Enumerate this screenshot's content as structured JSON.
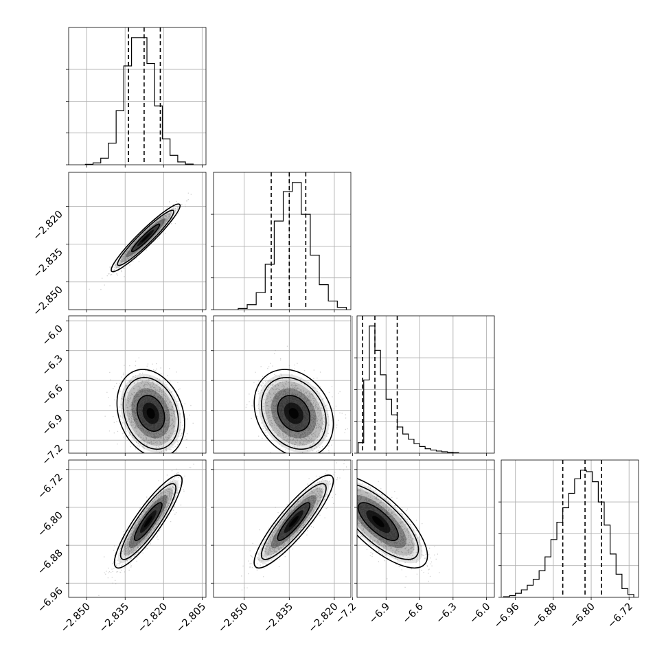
{
  "chart_data": {
    "type": "corner",
    "n_params": 4,
    "parameters": [
      {
        "xlim": [
          -2.857,
          -2.8035
        ],
        "xticks": [
          -2.85,
          -2.835,
          -2.82,
          -2.805
        ],
        "xticklabels": [
          "−2.850",
          "−2.835",
          "−2.820",
          "−2.805"
        ],
        "ylim": [
          -2.861,
          -2.8065
        ],
        "yticks": [
          -2.85,
          -2.835,
          -2.82
        ],
        "yticklabels": [
          "−2.850",
          "−2.835",
          "−2.820"
        ],
        "quantiles": [
          -2.8337,
          -2.8276,
          -2.8213
        ],
        "hist": {
          "edges": [
            -2.8505,
            -2.8475,
            -2.8445,
            -2.8415,
            -2.8385,
            -2.8355,
            -2.8325,
            -2.8295,
            -2.8265,
            -2.8235,
            -2.8205,
            -2.8175,
            -2.8145,
            -2.8115,
            -2.8085
          ],
          "counts": [
            2,
            8,
            28,
            92,
            230,
            420,
            540,
            540,
            430,
            250,
            110,
            40,
            12,
            3
          ]
        }
      },
      {
        "xlim": [
          -2.8602,
          -2.8145
        ],
        "xticks": [
          -2.85,
          -2.835,
          -2.82
        ],
        "xticklabels": [
          "−2.850",
          "−2.835",
          "−2.820"
        ],
        "ylim": [
          -7.33,
          -5.95
        ],
        "yticks": [
          -6.0,
          -6.3,
          -6.6,
          -6.9,
          -7.2
        ],
        "yticklabels": [
          "−6.0",
          "−6.3",
          "−6.6",
          "−6.9",
          "−7.2"
        ],
        "quantiles": [
          -2.841,
          -2.835,
          -2.8295
        ],
        "hist": {
          "edges": [
            -2.852,
            -2.849,
            -2.846,
            -2.843,
            -2.84,
            -2.837,
            -2.834,
            -2.831,
            -2.828,
            -2.825,
            -2.822,
            -2.819,
            -2.816
          ],
          "counts": [
            5,
            22,
            75,
            200,
            390,
            520,
            560,
            420,
            240,
            110,
            38,
            10
          ]
        }
      },
      {
        "xlim": [
          -7.16,
          -5.93
        ],
        "xticks": [
          -7.2,
          -6.9,
          -6.6,
          -6.3,
          -6.0
        ],
        "xticklabels": [
          "−7.2",
          "−6.9",
          "−6.6",
          "−6.3",
          "−6.0"
        ],
        "ylim": [
          -6.99,
          -6.7
        ],
        "yticks": [
          -6.72,
          -6.8,
          -6.88,
          -6.96
        ],
        "yticklabels": [
          "−6.72",
          "−6.80",
          "−6.88",
          "−6.96"
        ],
        "quantiles": [
          -7.11,
          -7.0,
          -6.8
        ],
        "hist": {
          "edges": [
            -7.15,
            -7.1,
            -7.05,
            -7.0,
            -6.95,
            -6.9,
            -6.85,
            -6.8,
            -6.75,
            -6.7,
            -6.65,
            -6.6,
            -6.55,
            -6.5,
            -6.45,
            -6.4,
            -6.35,
            -6.3,
            -6.25
          ],
          "counts": [
            60,
            420,
            730,
            590,
            450,
            310,
            220,
            150,
            110,
            80,
            55,
            38,
            25,
            18,
            12,
            8,
            5,
            3
          ]
        }
      },
      {
        "xlim": [
          -6.99,
          -6.7
        ],
        "xticks": [
          -6.96,
          -6.88,
          -6.8,
          -6.72
        ],
        "xticklabels": [
          "−6.96",
          "−6.88",
          "−6.80",
          "−6.72"
        ],
        "quantiles": [
          -6.86,
          -6.813,
          -6.778
        ],
        "hist": {
          "edges": [
            -6.985,
            -6.9725,
            -6.96,
            -6.9475,
            -6.935,
            -6.9225,
            -6.91,
            -6.8975,
            -6.885,
            -6.8725,
            -6.86,
            -6.8475,
            -6.835,
            -6.8225,
            -6.81,
            -6.7975,
            -6.785,
            -6.7725,
            -6.76,
            -6.7475,
            -6.735,
            -6.7225,
            -6.71
          ],
          "counts": [
            2,
            6,
            14,
            26,
            42,
            62,
            92,
            140,
            200,
            260,
            310,
            360,
            410,
            440,
            435,
            400,
            330,
            250,
            150,
            80,
            30,
            10
          ]
        }
      }
    ],
    "pairs": [
      {
        "row": 1,
        "col": 0,
        "center": [
          -2.827,
          -2.8325
        ],
        "cov": [
          [
            3e-05,
            2.85e-05
          ],
          [
            2.85e-05,
            3e-05
          ]
        ]
      },
      {
        "row": 2,
        "col": 0,
        "center": [
          -2.825,
          -6.93
        ],
        "cov": [
          [
            2.89e-05,
            -0.000224
          ],
          [
            -0.000224,
            0.0324
          ]
        ]
      },
      {
        "row": 3,
        "col": 0,
        "center": [
          -2.826,
          -6.83
        ],
        "cov": [
          [
            2.89e-05,
            0.00019
          ],
          [
            0.00019,
            0.0016
          ]
        ]
      },
      {
        "row": 2,
        "col": 1,
        "center": [
          -2.8335,
          -6.93
        ],
        "cov": [
          [
            2.89e-05,
            -0.000224
          ],
          [
            -0.000224,
            0.0324
          ]
        ]
      },
      {
        "row": 3,
        "col": 1,
        "center": [
          -2.8335,
          -6.83
        ],
        "cov": [
          [
            2.89e-05,
            0.00019
          ],
          [
            0.00019,
            0.0016
          ]
        ]
      },
      {
        "row": 3,
        "col": 2,
        "center": [
          -6.97,
          -6.83
        ],
        "cov": [
          [
            0.0324,
            -0.0053
          ],
          [
            -0.0053,
            0.0016
          ]
        ]
      }
    ],
    "contour_levels": [
      0.393,
      0.865
    ],
    "grid": true,
    "colors": {
      "line": "#000000",
      "scatter": "#9a9a9a",
      "grid": "#b0b0b0",
      "density": "#000000"
    }
  }
}
